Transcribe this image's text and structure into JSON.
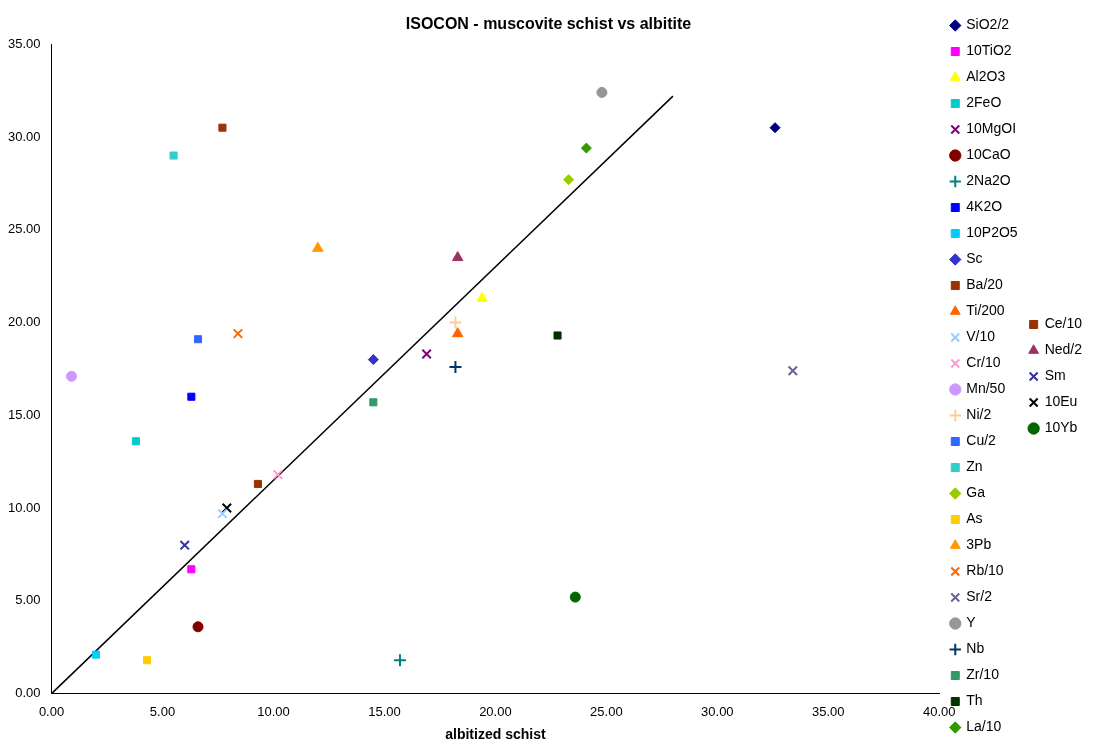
{
  "chart_data": {
    "type": "scatter",
    "title": "ISOCON - muscovite schist vs albitite",
    "xlabel": "albitized schist",
    "legend": "right",
    "grid": false,
    "xlim": [
      0,
      40
    ],
    "xticks": [
      {
        "value": 0,
        "label": "0.00"
      },
      {
        "value": 5,
        "label": "5.00"
      },
      {
        "value": 10,
        "label": "10.00"
      },
      {
        "value": 15,
        "label": "15.00"
      },
      {
        "value": 20,
        "label": "20.00"
      },
      {
        "value": 25,
        "label": "25.00"
      },
      {
        "value": 30,
        "label": "30.00"
      },
      {
        "value": 35,
        "label": "35.00"
      },
      {
        "value": 40,
        "label": "40.00"
      }
    ],
    "ylim": [
      0,
      35
    ],
    "yticks": [
      {
        "value": 0,
        "label": "0.00"
      },
      {
        "value": 5,
        "label": "5.00"
      },
      {
        "value": 10,
        "label": "10.00"
      },
      {
        "value": 15,
        "label": "15.00"
      },
      {
        "value": 20,
        "label": "20.00"
      },
      {
        "value": 25,
        "label": "25.00"
      },
      {
        "value": 30,
        "label": "30.00"
      },
      {
        "value": 35,
        "label": "35.00"
      }
    ],
    "series": [
      {
        "name": "SiO2/2",
        "color": "#000080",
        "marker": "diamond",
        "x": [
          32.6
        ],
        "values": [
          30.5
        ]
      },
      {
        "name": "10TiO2",
        "color": "#ff00ff",
        "marker": "square",
        "x": [
          6.3
        ],
        "values": [
          6.7
        ]
      },
      {
        "name": "Al2O3",
        "color": "#ffff00",
        "marker": "triangle",
        "x": [
          19.4
        ],
        "values": [
          21.3
        ]
      },
      {
        "name": "2FeO",
        "color": "#00cccc",
        "marker": "square",
        "x": [
          3.8
        ],
        "values": [
          13.6
        ]
      },
      {
        "name": "10MgOI",
        "color": "#800080",
        "marker": "cross",
        "x": [
          16.9
        ],
        "values": [
          18.3
        ]
      },
      {
        "name": "10CaO",
        "color": "#800000",
        "marker": "circle",
        "x": [
          6.6
        ],
        "values": [
          3.6
        ]
      },
      {
        "name": "2Na2O",
        "color": "#008080",
        "marker": "plus",
        "x": [
          15.7
        ],
        "values": [
          1.8
        ]
      },
      {
        "name": "4K2O",
        "color": "#0000ff",
        "marker": "square",
        "x": [
          6.3
        ],
        "values": [
          16.0
        ]
      },
      {
        "name": "10P2O5",
        "color": "#00ccff",
        "marker": "square",
        "x": [
          2.0
        ],
        "values": [
          2.1
        ]
      },
      {
        "name": "Sc",
        "color": "#3333cc",
        "marker": "diamond",
        "x": [
          14.5
        ],
        "values": [
          18.0
        ]
      },
      {
        "name": "Ba/20",
        "color": "#993300",
        "marker": "square",
        "x": [
          7.7
        ],
        "values": [
          30.5
        ]
      },
      {
        "name": "Ti/200",
        "color": "#ff6600",
        "marker": "triangle",
        "x": [
          18.3
        ],
        "values": [
          19.4
        ]
      },
      {
        "name": "V/10",
        "color": "#99ccff",
        "marker": "cross",
        "x": [
          7.7
        ],
        "values": [
          9.7
        ]
      },
      {
        "name": "Cr/10",
        "color": "#ff99cc",
        "marker": "cross",
        "x": [
          10.2
        ],
        "values": [
          11.8
        ]
      },
      {
        "name": "Mn/50",
        "color": "#cc99ff",
        "marker": "circle",
        "x": [
          0.9
        ],
        "values": [
          17.1
        ]
      },
      {
        "name": "Ni/2",
        "color": "#ffcc99",
        "marker": "plus",
        "x": [
          18.2
        ],
        "values": [
          20.0
        ]
      },
      {
        "name": "Cu/2",
        "color": "#3366ff",
        "marker": "square",
        "x": [
          6.6
        ],
        "values": [
          19.1
        ]
      },
      {
        "name": "Zn",
        "color": "#33cccc",
        "marker": "square",
        "x": [
          5.5
        ],
        "values": [
          29.0
        ]
      },
      {
        "name": "Ga",
        "color": "#99cc00",
        "marker": "diamond",
        "x": [
          23.3
        ],
        "values": [
          27.7
        ]
      },
      {
        "name": "As",
        "color": "#ffcc00",
        "marker": "square",
        "x": [
          4.3
        ],
        "values": [
          1.8
        ]
      },
      {
        "name": "3Pb",
        "color": "#ff9900",
        "marker": "triangle",
        "x": [
          12.0
        ],
        "values": [
          24.0
        ]
      },
      {
        "name": "Rb/10",
        "color": "#ff6600",
        "marker": "cross",
        "x": [
          8.4
        ],
        "values": [
          19.4
        ]
      },
      {
        "name": "Sr/2",
        "color": "#666699",
        "marker": "cross",
        "x": [
          33.4
        ],
        "values": [
          17.4
        ]
      },
      {
        "name": "Y",
        "color": "#969696",
        "marker": "circle",
        "x": [
          24.8
        ],
        "values": [
          32.4
        ]
      },
      {
        "name": "Nb",
        "color": "#003366",
        "marker": "plus",
        "x": [
          18.2
        ],
        "values": [
          17.6
        ]
      },
      {
        "name": "Zr/10",
        "color": "#339966",
        "marker": "square",
        "x": [
          14.5
        ],
        "values": [
          15.7
        ]
      },
      {
        "name": "Th",
        "color": "#003300",
        "marker": "square",
        "x": [
          22.8
        ],
        "values": [
          19.3
        ]
      },
      {
        "name": "La/10",
        "color": "#339900",
        "marker": "diamond",
        "x": [
          24.1
        ],
        "values": [
          29.4
        ]
      },
      {
        "name": "Ce/10",
        "color": "#993300",
        "marker": "square",
        "x": [
          9.3
        ],
        "values": [
          11.3
        ]
      },
      {
        "name": "Ned/2",
        "color": "#993366",
        "marker": "triangle",
        "x": [
          18.3
        ],
        "values": [
          23.5
        ]
      },
      {
        "name": "Sm",
        "color": "#333399",
        "marker": "cross",
        "x": [
          6.0
        ],
        "values": [
          8.0
        ]
      },
      {
        "name": "10Eu",
        "color": "#000000",
        "marker": "cross",
        "x": [
          7.9
        ],
        "values": [
          10.0
        ]
      },
      {
        "name": "10Yb",
        "color": "#006600",
        "marker": "circle",
        "x": [
          23.6
        ],
        "values": [
          5.2
        ]
      },
      {
        "type": "line",
        "color": "#000000",
        "marker": "none",
        "x": [
          0,
          28
        ],
        "values": [
          0,
          32.2
        ]
      }
    ]
  }
}
